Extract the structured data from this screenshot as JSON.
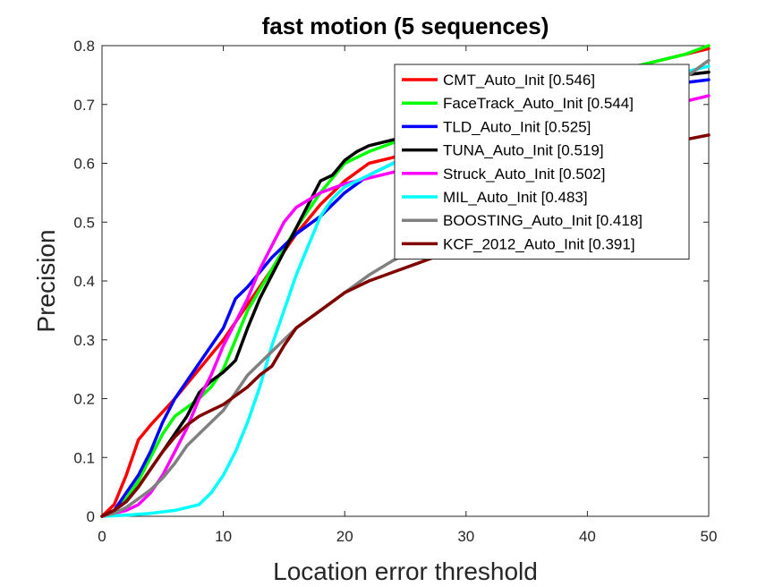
{
  "chart_data": {
    "type": "line",
    "title": "fast motion (5 sequences)",
    "xlabel": "Location error threshold",
    "ylabel": "Precision",
    "xlim": [
      0,
      50
    ],
    "ylim": [
      0,
      0.8
    ],
    "xticks": [
      0,
      10,
      20,
      30,
      40,
      50
    ],
    "yticks": [
      0,
      0.1,
      0.2,
      0.3,
      0.4,
      0.5,
      0.6,
      0.7,
      0.8
    ],
    "grid": false,
    "legend": "top-right",
    "series": [
      {
        "name": "CMT_Auto_Init [0.546]",
        "color": "#ff0000",
        "points": [
          [
            0,
            0
          ],
          [
            1,
            0.02
          ],
          [
            2,
            0.07
          ],
          [
            3,
            0.13
          ],
          [
            4,
            0.155
          ],
          [
            6,
            0.2
          ],
          [
            8,
            0.25
          ],
          [
            10,
            0.3
          ],
          [
            12,
            0.36
          ],
          [
            14,
            0.42
          ],
          [
            16,
            0.48
          ],
          [
            18,
            0.53
          ],
          [
            20,
            0.57
          ],
          [
            22,
            0.6
          ],
          [
            24,
            0.61
          ],
          [
            26,
            0.63
          ],
          [
            28,
            0.645
          ],
          [
            30,
            0.66
          ],
          [
            32,
            0.68
          ],
          [
            35,
            0.71
          ],
          [
            38,
            0.735
          ],
          [
            40,
            0.745
          ],
          [
            42,
            0.755
          ],
          [
            44,
            0.765
          ],
          [
            46,
            0.775
          ],
          [
            48,
            0.785
          ],
          [
            50,
            0.795
          ]
        ]
      },
      {
        "name": "FaceTrack_Auto_Init [0.544]",
        "color": "#00ff00",
        "points": [
          [
            0,
            0
          ],
          [
            1,
            0.01
          ],
          [
            2,
            0.03
          ],
          [
            3,
            0.06
          ],
          [
            4,
            0.1
          ],
          [
            5,
            0.14
          ],
          [
            6,
            0.17
          ],
          [
            8,
            0.2
          ],
          [
            9,
            0.22
          ],
          [
            10,
            0.25
          ],
          [
            11,
            0.3
          ],
          [
            12,
            0.35
          ],
          [
            14,
            0.42
          ],
          [
            16,
            0.49
          ],
          [
            18,
            0.55
          ],
          [
            20,
            0.6
          ],
          [
            22,
            0.62
          ],
          [
            24,
            0.635
          ],
          [
            26,
            0.645
          ],
          [
            28,
            0.655
          ],
          [
            30,
            0.67
          ],
          [
            32,
            0.69
          ],
          [
            35,
            0.715
          ],
          [
            38,
            0.735
          ],
          [
            40,
            0.745
          ],
          [
            42,
            0.755
          ],
          [
            44,
            0.765
          ],
          [
            46,
            0.775
          ],
          [
            48,
            0.785
          ],
          [
            50,
            0.8
          ]
        ]
      },
      {
        "name": "TLD_Auto_Init [0.525]",
        "color": "#0000ff",
        "points": [
          [
            0,
            0
          ],
          [
            1,
            0.01
          ],
          [
            2,
            0.04
          ],
          [
            3,
            0.07
          ],
          [
            4,
            0.11
          ],
          [
            5,
            0.16
          ],
          [
            6,
            0.2
          ],
          [
            8,
            0.26
          ],
          [
            10,
            0.32
          ],
          [
            11,
            0.37
          ],
          [
            12,
            0.39
          ],
          [
            14,
            0.44
          ],
          [
            16,
            0.48
          ],
          [
            18,
            0.51
          ],
          [
            20,
            0.55
          ],
          [
            22,
            0.58
          ],
          [
            24,
            0.6
          ],
          [
            26,
            0.62
          ],
          [
            28,
            0.635
          ],
          [
            30,
            0.65
          ],
          [
            32,
            0.665
          ],
          [
            35,
            0.685
          ],
          [
            38,
            0.7
          ],
          [
            40,
            0.71
          ],
          [
            42,
            0.72
          ],
          [
            44,
            0.728
          ],
          [
            46,
            0.733
          ],
          [
            48,
            0.737
          ],
          [
            50,
            0.742
          ]
        ]
      },
      {
        "name": "TUNA_Auto_Init [0.519]",
        "color": "#000000",
        "points": [
          [
            0,
            0
          ],
          [
            1,
            0.01
          ],
          [
            2,
            0.025
          ],
          [
            3,
            0.05
          ],
          [
            4,
            0.08
          ],
          [
            5,
            0.11
          ],
          [
            6,
            0.14
          ],
          [
            7,
            0.17
          ],
          [
            8,
            0.21
          ],
          [
            9,
            0.23
          ],
          [
            10,
            0.245
          ],
          [
            11,
            0.265
          ],
          [
            12,
            0.32
          ],
          [
            13,
            0.37
          ],
          [
            14,
            0.41
          ],
          [
            15,
            0.45
          ],
          [
            16,
            0.49
          ],
          [
            17,
            0.53
          ],
          [
            18,
            0.57
          ],
          [
            19,
            0.58
          ],
          [
            20,
            0.605
          ],
          [
            21,
            0.62
          ],
          [
            22,
            0.63
          ],
          [
            24,
            0.64
          ],
          [
            26,
            0.65
          ],
          [
            28,
            0.665
          ],
          [
            30,
            0.675
          ],
          [
            32,
            0.69
          ],
          [
            35,
            0.71
          ],
          [
            38,
            0.725
          ],
          [
            40,
            0.73
          ],
          [
            42,
            0.735
          ],
          [
            44,
            0.74
          ],
          [
            46,
            0.745
          ],
          [
            48,
            0.75
          ],
          [
            50,
            0.755
          ]
        ]
      },
      {
        "name": "Struck_Auto_Init [0.502]",
        "color": "#ff00ff",
        "points": [
          [
            0,
            0
          ],
          [
            1,
            0.005
          ],
          [
            2,
            0.01
          ],
          [
            3,
            0.02
          ],
          [
            4,
            0.04
          ],
          [
            5,
            0.07
          ],
          [
            6,
            0.11
          ],
          [
            7,
            0.15
          ],
          [
            8,
            0.2
          ],
          [
            9,
            0.24
          ],
          [
            10,
            0.29
          ],
          [
            11,
            0.33
          ],
          [
            12,
            0.37
          ],
          [
            13,
            0.42
          ],
          [
            14,
            0.46
          ],
          [
            15,
            0.5
          ],
          [
            16,
            0.525
          ],
          [
            18,
            0.55
          ],
          [
            20,
            0.565
          ],
          [
            22,
            0.575
          ],
          [
            24,
            0.585
          ],
          [
            26,
            0.595
          ],
          [
            28,
            0.605
          ],
          [
            30,
            0.615
          ],
          [
            32,
            0.625
          ],
          [
            35,
            0.64
          ],
          [
            38,
            0.655
          ],
          [
            40,
            0.665
          ],
          [
            42,
            0.675
          ],
          [
            44,
            0.685
          ],
          [
            46,
            0.695
          ],
          [
            48,
            0.705
          ],
          [
            50,
            0.715
          ]
        ]
      },
      {
        "name": "MIL_Auto_Init [0.483]",
        "color": "#00ffff",
        "points": [
          [
            0,
            0
          ],
          [
            2,
            0.002
          ],
          [
            4,
            0.005
          ],
          [
            6,
            0.01
          ],
          [
            8,
            0.02
          ],
          [
            9,
            0.04
          ],
          [
            10,
            0.07
          ],
          [
            11,
            0.11
          ],
          [
            12,
            0.16
          ],
          [
            13,
            0.22
          ],
          [
            14,
            0.29
          ],
          [
            15,
            0.35
          ],
          [
            16,
            0.41
          ],
          [
            17,
            0.46
          ],
          [
            18,
            0.51
          ],
          [
            19,
            0.54
          ],
          [
            20,
            0.56
          ],
          [
            22,
            0.58
          ],
          [
            24,
            0.6
          ],
          [
            26,
            0.615
          ],
          [
            28,
            0.63
          ],
          [
            30,
            0.645
          ],
          [
            32,
            0.66
          ],
          [
            35,
            0.685
          ],
          [
            38,
            0.705
          ],
          [
            40,
            0.715
          ],
          [
            42,
            0.725
          ],
          [
            44,
            0.735
          ],
          [
            46,
            0.745
          ],
          [
            48,
            0.755
          ],
          [
            50,
            0.765
          ]
        ]
      },
      {
        "name": "BOOSTING_Auto_Init [0.418]",
        "color": "#808080",
        "points": [
          [
            0,
            0
          ],
          [
            1,
            0.005
          ],
          [
            2,
            0.015
          ],
          [
            3,
            0.03
          ],
          [
            4,
            0.045
          ],
          [
            5,
            0.065
          ],
          [
            6,
            0.09
          ],
          [
            7,
            0.12
          ],
          [
            8,
            0.14
          ],
          [
            9,
            0.16
          ],
          [
            10,
            0.18
          ],
          [
            11,
            0.21
          ],
          [
            12,
            0.24
          ],
          [
            13,
            0.26
          ],
          [
            14,
            0.28
          ],
          [
            15,
            0.3
          ],
          [
            16,
            0.32
          ],
          [
            18,
            0.35
          ],
          [
            20,
            0.38
          ],
          [
            22,
            0.41
          ],
          [
            24,
            0.435
          ],
          [
            26,
            0.455
          ],
          [
            28,
            0.47
          ],
          [
            30,
            0.49
          ],
          [
            32,
            0.51
          ],
          [
            35,
            0.55
          ],
          [
            38,
            0.6
          ],
          [
            40,
            0.63
          ],
          [
            42,
            0.66
          ],
          [
            44,
            0.69
          ],
          [
            46,
            0.72
          ],
          [
            48,
            0.745
          ],
          [
            50,
            0.775
          ]
        ]
      },
      {
        "name": "KCF_2012_Auto_Init [0.391]",
        "color": "#800000",
        "points": [
          [
            0,
            0
          ],
          [
            1,
            0.01
          ],
          [
            2,
            0.025
          ],
          [
            3,
            0.05
          ],
          [
            4,
            0.08
          ],
          [
            5,
            0.11
          ],
          [
            6,
            0.135
          ],
          [
            7,
            0.155
          ],
          [
            8,
            0.17
          ],
          [
            9,
            0.18
          ],
          [
            10,
            0.19
          ],
          [
            11,
            0.205
          ],
          [
            12,
            0.22
          ],
          [
            13,
            0.24
          ],
          [
            14,
            0.255
          ],
          [
            15,
            0.29
          ],
          [
            16,
            0.32
          ],
          [
            18,
            0.35
          ],
          [
            20,
            0.38
          ],
          [
            22,
            0.4
          ],
          [
            24,
            0.415
          ],
          [
            26,
            0.43
          ],
          [
            28,
            0.445
          ],
          [
            30,
            0.46
          ],
          [
            32,
            0.48
          ],
          [
            35,
            0.51
          ],
          [
            38,
            0.55
          ],
          [
            40,
            0.58
          ],
          [
            42,
            0.605
          ],
          [
            44,
            0.62
          ],
          [
            46,
            0.63
          ],
          [
            48,
            0.64
          ],
          [
            50,
            0.648
          ]
        ]
      }
    ]
  }
}
